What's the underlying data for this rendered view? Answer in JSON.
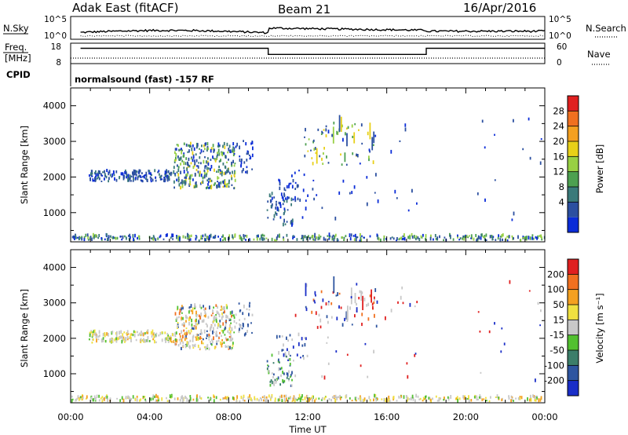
{
  "header": {
    "radar": "Adak East (fitACF)",
    "beam": "Beam 21",
    "date": "16/Apr/2016"
  },
  "strip_nsky": {
    "left_label": "N.Sky",
    "right_label": "N.Search",
    "left_ticks": [
      "10^5",
      "10^0"
    ],
    "right_ticks": [
      "10^5",
      "10^0"
    ]
  },
  "strip_freq": {
    "left_label_1": "Freq.",
    "left_label_2": "[MHz]",
    "right_label": "Nave",
    "left_ticks": [
      "18",
      "8"
    ],
    "right_ticks": [
      "60",
      "0"
    ],
    "segments": [
      {
        "start_h": 0.5,
        "end_h": 10.0,
        "freq_mhz": 15.5
      },
      {
        "start_h": 10.0,
        "end_h": 18.0,
        "freq_mhz": 12.5
      },
      {
        "start_h": 18.0,
        "end_h": 24.0,
        "freq_mhz": 15.5
      }
    ]
  },
  "cpid": {
    "label": "CPID",
    "text": "normalsound (fast) -157 RF"
  },
  "chart_data": [
    {
      "type": "heatmap",
      "name": "power",
      "xlabel": "",
      "ylabel": "Slant Range [km]",
      "yticks": [
        "4000",
        "3000",
        "2000",
        "1000"
      ],
      "ylim": [
        180,
        4500
      ],
      "colorbar_label": "Power [dB]",
      "colorbar_ticks": [
        "28",
        "24",
        "20",
        "16",
        "12",
        "8",
        "4"
      ],
      "colorbar_colors": [
        "#0a2cd8",
        "#2b4fa0",
        "#3a7a7a",
        "#4da050",
        "#98d044",
        "#e8d018",
        "#f4a020",
        "#f07020",
        "#e02020"
      ],
      "regions": [
        {
          "t0": 0.9,
          "t1": 5.2,
          "r0": 1850,
          "r1": 2150,
          "n": 170,
          "levels": [
            0,
            1,
            1,
            2
          ]
        },
        {
          "t0": 5.2,
          "t1": 8.3,
          "r0": 1650,
          "r1": 2900,
          "n": 300,
          "levels": [
            0,
            1,
            1,
            2,
            2,
            3,
            4,
            5
          ]
        },
        {
          "t0": 8.3,
          "t1": 9.2,
          "r0": 2000,
          "r1": 3000,
          "n": 30,
          "levels": [
            0,
            1
          ]
        },
        {
          "t0": 9.9,
          "t1": 11.2,
          "r0": 600,
          "r1": 1500,
          "n": 55,
          "levels": [
            0,
            1,
            2
          ]
        },
        {
          "t0": 10.4,
          "t1": 12.0,
          "r0": 1300,
          "r1": 2100,
          "n": 30,
          "levels": [
            0,
            1
          ]
        },
        {
          "t0": 11.8,
          "t1": 15.5,
          "r0": 2300,
          "r1": 3500,
          "n": 60,
          "levels": [
            1,
            3,
            4,
            5
          ]
        },
        {
          "t0": 11.0,
          "t1": 17.5,
          "r0": 700,
          "r1": 3500,
          "n": 40,
          "levels": [
            0,
            1
          ]
        },
        {
          "t0": 20.5,
          "t1": 23.8,
          "r0": 600,
          "r1": 3600,
          "n": 14,
          "levels": [
            0,
            1
          ]
        },
        {
          "t0": 0.0,
          "t1": 24.0,
          "r0": 190,
          "r1": 330,
          "n": 380,
          "levels": [
            0,
            1,
            2,
            3,
            4
          ]
        }
      ]
    },
    {
      "type": "heatmap",
      "name": "velocity",
      "xlabel": "Time UT",
      "ylabel": "Slant Range [km]",
      "yticks": [
        "4000",
        "3000",
        "2000",
        "1000"
      ],
      "ylim": [
        180,
        4500
      ],
      "xticks": [
        "00:00",
        "04:00",
        "08:00",
        "12:00",
        "16:00",
        "20:00",
        "00:00"
      ],
      "xlim_hours": [
        0,
        24
      ],
      "colorbar_label": "Velocity [m s⁻¹]",
      "colorbar_ticks": [
        "200",
        "100",
        "50",
        "15",
        "-15",
        "-50",
        "-100",
        "-200"
      ],
      "colorbar_colors": [
        "#1a2ec8",
        "#2e55a0",
        "#3c7e6a",
        "#52c030",
        "#c8c8c8",
        "#f0e040",
        "#f4a020",
        "#f07020",
        "#e02020"
      ],
      "regions": [
        {
          "t0": 0.9,
          "t1": 5.2,
          "r0": 1850,
          "r1": 2150,
          "n": 170,
          "levels": [
            4,
            4,
            4,
            5,
            6,
            3
          ]
        },
        {
          "t0": 5.2,
          "t1": 8.3,
          "r0": 1650,
          "r1": 2900,
          "n": 300,
          "levels": [
            4,
            4,
            4,
            5,
            6,
            7,
            1,
            3
          ]
        },
        {
          "t0": 8.3,
          "t1": 9.2,
          "r0": 2000,
          "r1": 3000,
          "n": 30,
          "levels": [
            4,
            1
          ]
        },
        {
          "t0": 9.9,
          "t1": 11.2,
          "r0": 600,
          "r1": 1500,
          "n": 55,
          "levels": [
            3,
            1,
            2,
            4
          ]
        },
        {
          "t0": 10.4,
          "t1": 12.0,
          "r0": 1300,
          "r1": 2100,
          "n": 30,
          "levels": [
            0,
            1,
            4
          ]
        },
        {
          "t0": 11.8,
          "t1": 15.5,
          "r0": 2300,
          "r1": 3500,
          "n": 60,
          "levels": [
            0,
            8,
            7,
            4,
            1
          ]
        },
        {
          "t0": 11.0,
          "t1": 17.5,
          "r0": 700,
          "r1": 3500,
          "n": 40,
          "levels": [
            0,
            4,
            8
          ]
        },
        {
          "t0": 20.5,
          "t1": 23.8,
          "r0": 600,
          "r1": 3600,
          "n": 14,
          "levels": [
            0,
            4,
            8
          ]
        },
        {
          "t0": 0.0,
          "t1": 24.0,
          "r0": 190,
          "r1": 330,
          "n": 380,
          "levels": [
            4,
            5,
            4,
            3,
            6
          ]
        }
      ]
    }
  ]
}
